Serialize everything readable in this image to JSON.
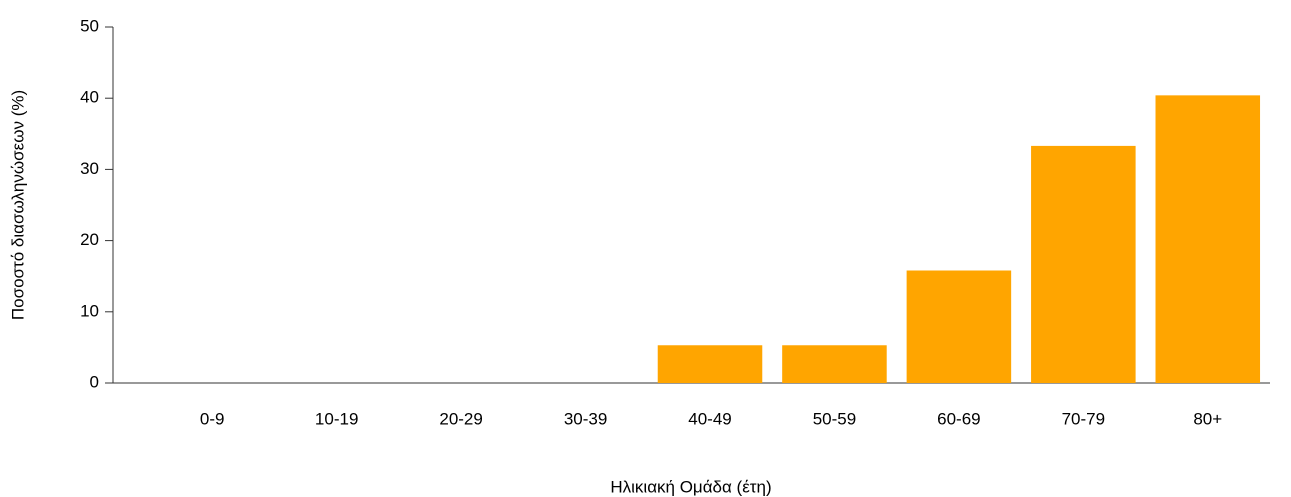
{
  "chart_data": {
    "type": "bar",
    "x_label": "Ηλικιακή Ομάδα (έτη)",
    "y_label": "Ποσοστό διασωληνώσεων (%)",
    "categories": [
      "0-9",
      "10-19",
      "20-29",
      "30-39",
      "40-49",
      "50-59",
      "60-69",
      "70-79",
      "80+"
    ],
    "values": [
      0,
      0,
      0,
      0,
      5.3,
      5.3,
      15.8,
      33.3,
      40.4
    ],
    "color": "#ffa500",
    "ylim": [
      0,
      50
    ],
    "yticks": [
      0,
      10,
      20,
      30,
      40,
      50
    ],
    "grid": false
  }
}
